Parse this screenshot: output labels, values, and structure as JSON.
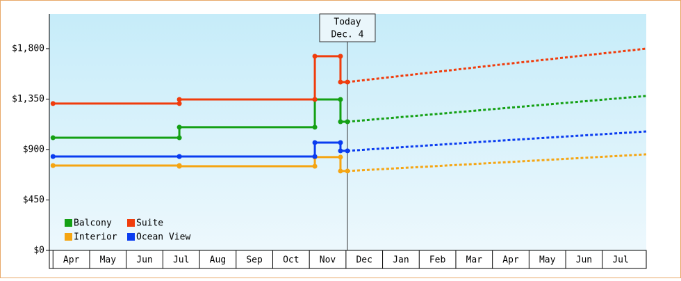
{
  "chart_data": {
    "type": "line",
    "xlim": [
      -0.1,
      16.2
    ],
    "ylim": [
      0,
      2110
    ],
    "yticks": [
      {
        "value": 0,
        "label": "$0"
      },
      {
        "value": 450,
        "label": "$450"
      },
      {
        "value": 900,
        "label": "$900"
      },
      {
        "value": 1350,
        "label": "$1,350"
      },
      {
        "value": 1800,
        "label": "$1,800"
      }
    ],
    "categories": [
      "Apr",
      "May",
      "Jun",
      "Jul",
      "Aug",
      "Sep",
      "Oct",
      "Nov",
      "Dec",
      "Jan",
      "Feb",
      "Mar",
      "Apr",
      "May",
      "Jun",
      "Jul"
    ],
    "annotation": {
      "x": 8.04,
      "lines": [
        "Today",
        "Dec. 4"
      ]
    },
    "legend": "lower left",
    "series": [
      {
        "name": "Balcony",
        "color": "#14a014",
        "actual": {
          "x": [
            0,
            3.45,
            3.45,
            7.15,
            7.15,
            7.85,
            7.85,
            8.04
          ],
          "values": [
            1005,
            1005,
            1099,
            1099,
            1347,
            1347,
            1148,
            1148
          ]
        },
        "forecast": {
          "x": [
            8.04,
            12,
            16.2
          ],
          "values": [
            1148,
            1260,
            1378
          ]
        }
      },
      {
        "name": "Suite",
        "color": "#f03c0c",
        "actual": {
          "x": [
            0,
            3.45,
            3.45,
            7.15,
            7.15,
            7.85,
            7.85,
            8.04
          ],
          "values": [
            1310,
            1310,
            1347,
            1347,
            1732,
            1732,
            1502,
            1502
          ]
        },
        "forecast": {
          "x": [
            8.04,
            12,
            16.2
          ],
          "values": [
            1502,
            1650,
            1800
          ]
        }
      },
      {
        "name": "Interior",
        "color": "#f5a512",
        "actual": {
          "x": [
            0,
            3.45,
            3.45,
            7.15,
            7.15,
            7.85,
            7.85,
            8.04
          ],
          "values": [
            757,
            757,
            751,
            751,
            832,
            832,
            708,
            708
          ]
        },
        "forecast": {
          "x": [
            8.04,
            12,
            16.2
          ],
          "values": [
            708,
            780,
            857
          ]
        }
      },
      {
        "name": "Ocean View",
        "color": "#0a3cf0",
        "actual": {
          "x": [
            0,
            3.45,
            3.45,
            7.15,
            7.15,
            7.85,
            7.85,
            8.04
          ],
          "values": [
            838,
            838,
            838,
            838,
            962,
            962,
            888,
            888
          ]
        },
        "forecast": {
          "x": [
            8.04,
            12,
            16.2
          ],
          "values": [
            888,
            975,
            1061
          ]
        }
      }
    ]
  }
}
